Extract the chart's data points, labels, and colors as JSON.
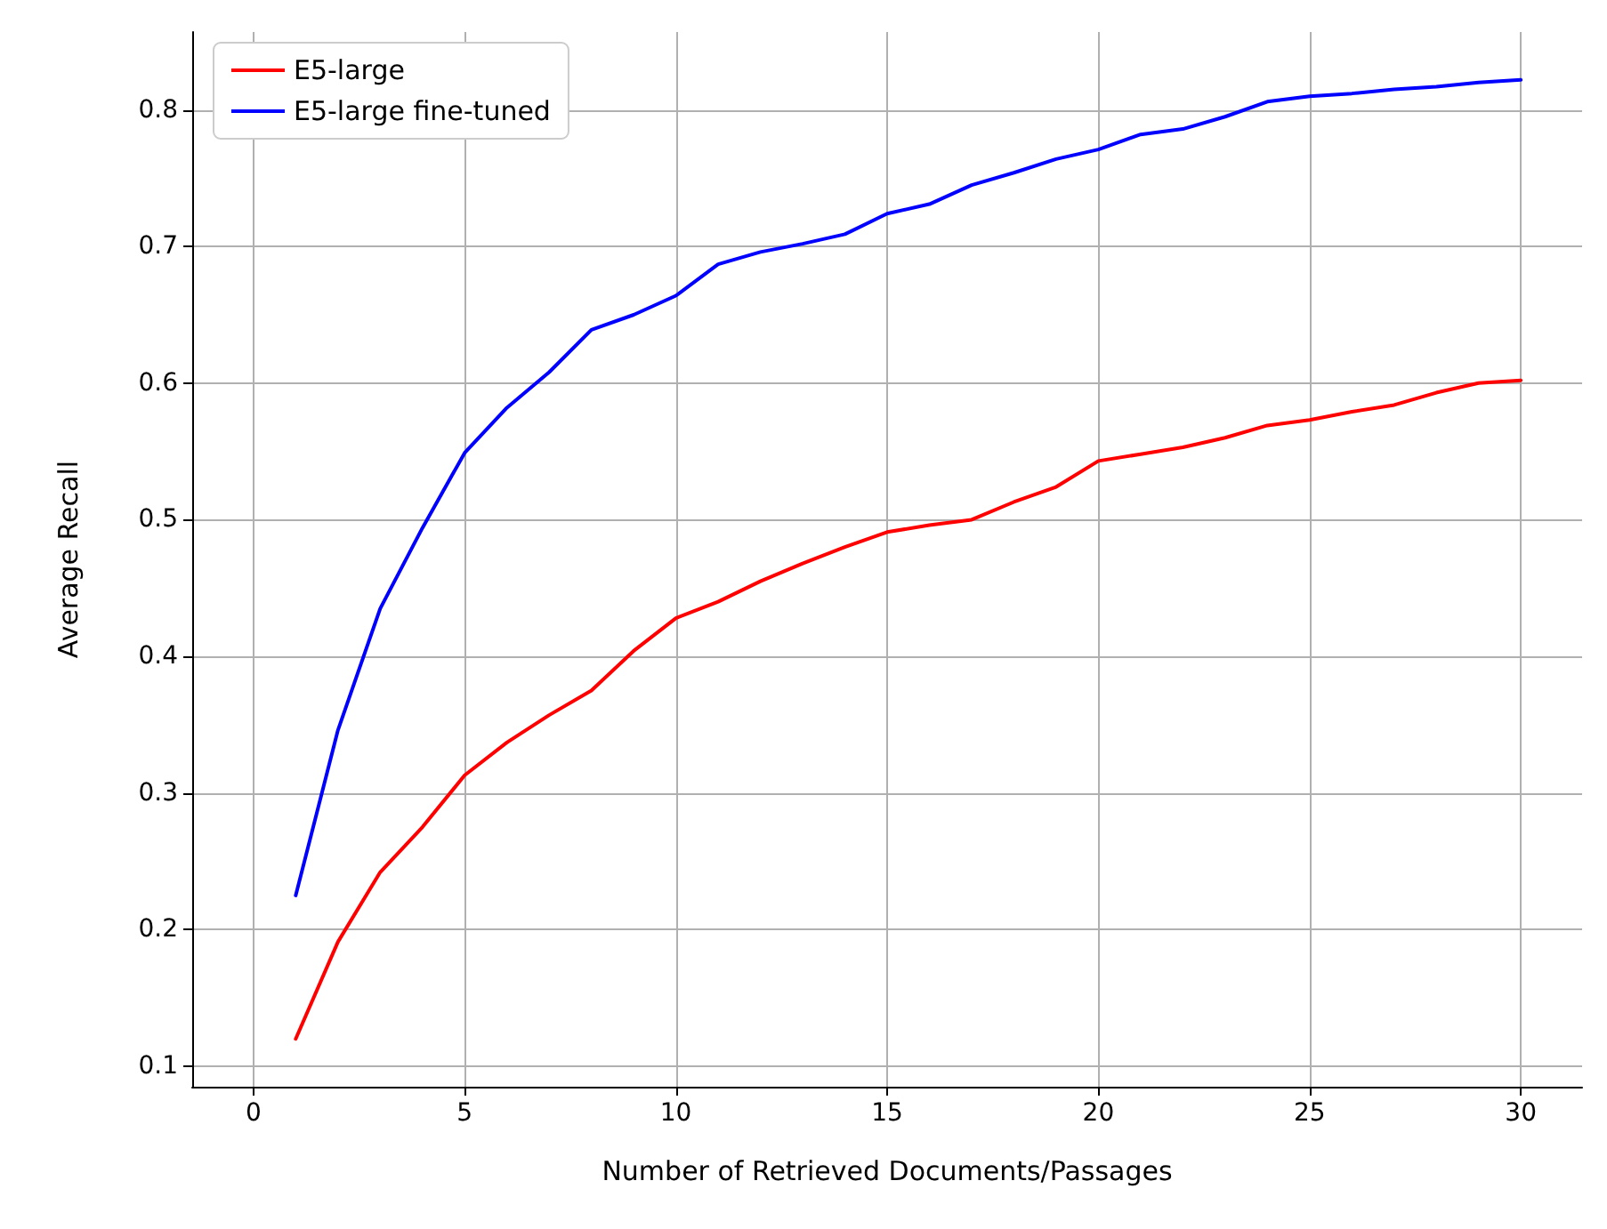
{
  "chart_data": {
    "type": "line",
    "xlabel": "Number of Retrieved Documents/Passages",
    "ylabel": "Average Recall",
    "x": [
      1,
      2,
      3,
      4,
      5,
      6,
      7,
      8,
      9,
      10,
      11,
      12,
      13,
      14,
      15,
      16,
      17,
      18,
      19,
      20,
      21,
      22,
      23,
      24,
      25,
      26,
      27,
      28,
      29,
      30
    ],
    "series": [
      {
        "name": "E5-large",
        "color": "#ff0000",
        "values": [
          0.12,
          0.191,
          0.242,
          0.275,
          0.313,
          0.337,
          0.357,
          0.375,
          0.404,
          0.428,
          0.44,
          0.455,
          0.468,
          0.48,
          0.491,
          0.496,
          0.5,
          0.513,
          0.524,
          0.543,
          0.548,
          0.553,
          0.56,
          0.569,
          0.573,
          0.579,
          0.584,
          0.593,
          0.6,
          0.602
        ]
      },
      {
        "name": "E5-large fine-tuned",
        "color": "#0000ff",
        "values": [
          0.225,
          0.346,
          0.435,
          0.494,
          0.549,
          0.582,
          0.608,
          0.639,
          0.65,
          0.664,
          0.687,
          0.696,
          0.702,
          0.709,
          0.724,
          0.731,
          0.745,
          0.754,
          0.764,
          0.771,
          0.782,
          0.786,
          0.795,
          0.806,
          0.81,
          0.812,
          0.815,
          0.817,
          0.82,
          0.822
        ]
      }
    ],
    "xlim": [
      -1.45,
      31.45
    ],
    "ylim": [
      0.085,
      0.857
    ],
    "xticks": [
      0,
      5,
      10,
      15,
      20,
      25,
      30
    ],
    "yticks": [
      0.1,
      0.2,
      0.3,
      0.4,
      0.5,
      0.6,
      0.7,
      0.8
    ],
    "grid": true,
    "legend": "top left",
    "marker": "none",
    "line_style": "solid"
  }
}
